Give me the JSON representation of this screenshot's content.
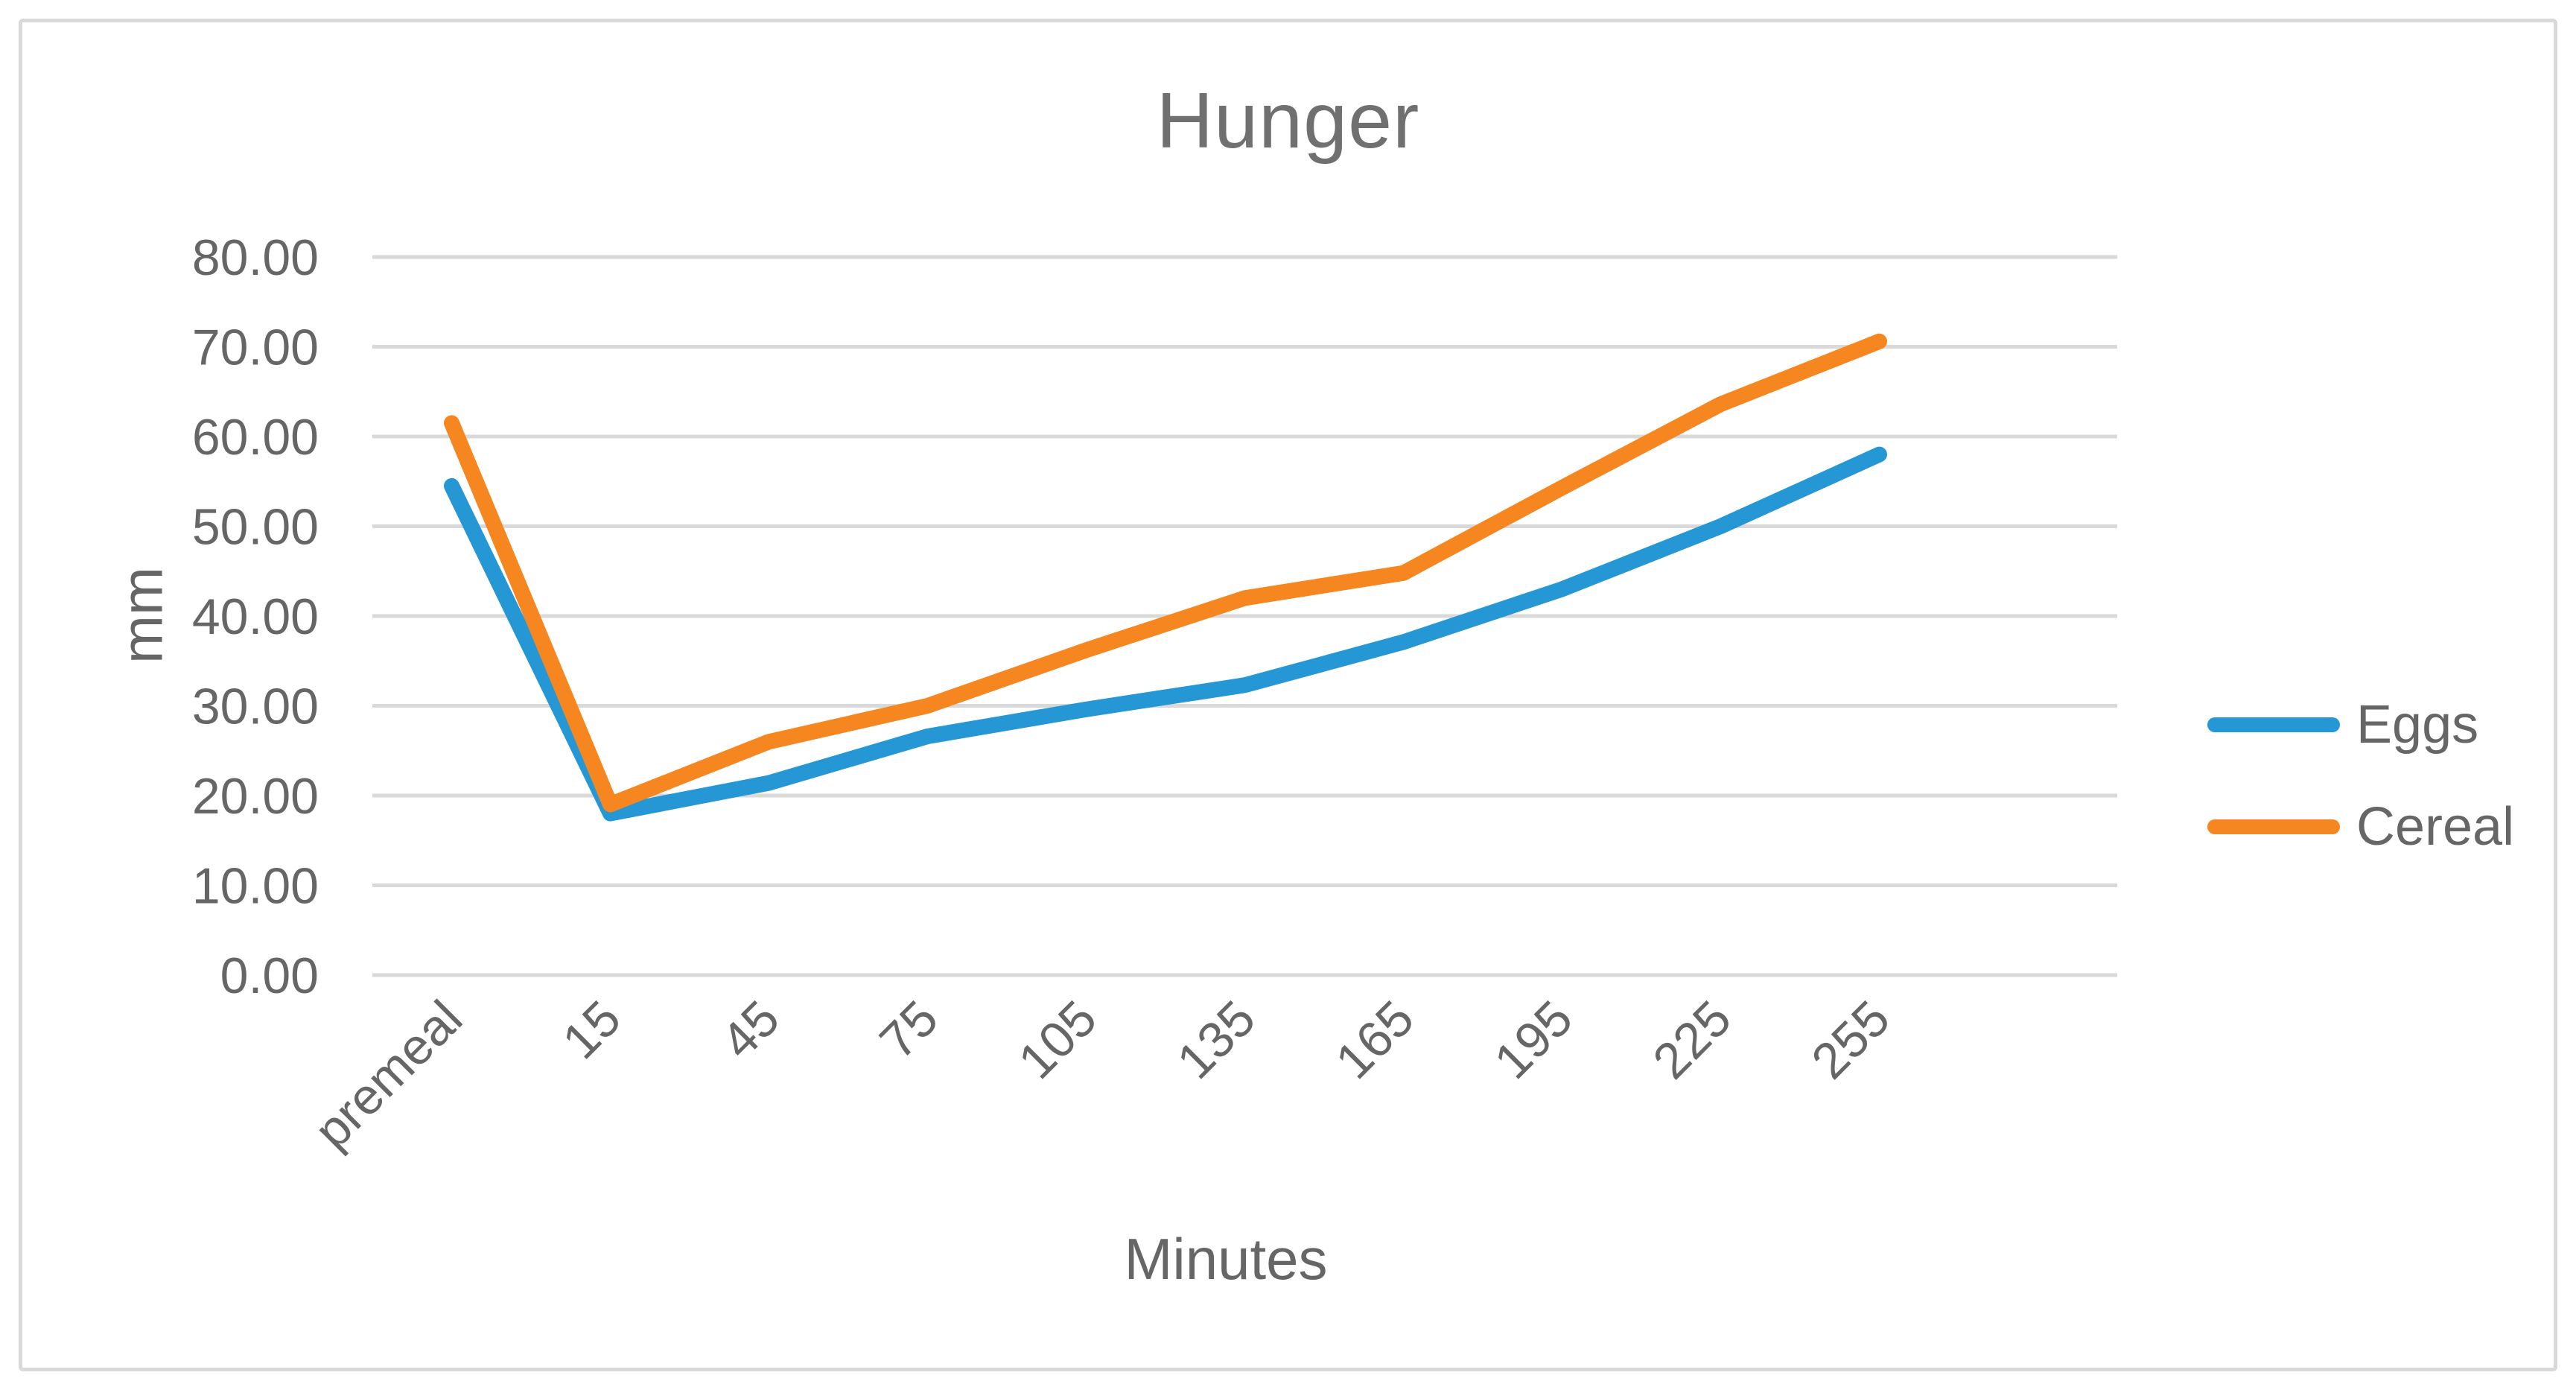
{
  "chart": {
    "title": "Hunger",
    "x_axis_title": "Minutes",
    "y_axis_title": "mm",
    "legend": {
      "position": "right",
      "items": [
        {
          "label": "Eggs",
          "color": "#2697D5"
        },
        {
          "label": "Cereal",
          "color": "#F6861F"
        }
      ]
    },
    "colors": {
      "gridline": "#D9D9D9",
      "border": "#D9D9D9",
      "title_text": "#707070",
      "axis_text": "#666666"
    }
  },
  "chart_data": {
    "type": "line",
    "title": "Hunger",
    "xlabel": "Minutes",
    "ylabel": "mm",
    "categories": [
      "premeal",
      "15",
      "45",
      "75",
      "105",
      "135",
      "165",
      "195",
      "225",
      "255"
    ],
    "series": [
      {
        "name": "Eggs",
        "color": "#2697D5",
        "values": [
          54.5,
          18.0,
          21.4,
          26.6,
          29.6,
          32.3,
          37.1,
          43.0,
          50.0,
          58.0
        ]
      },
      {
        "name": "Cereal",
        "color": "#F6861F",
        "values": [
          61.5,
          19.0,
          26.0,
          30.0,
          36.2,
          42.0,
          44.8,
          54.3,
          63.6,
          70.6
        ]
      }
    ],
    "ylim": [
      0,
      80
    ],
    "ytick_step": 10,
    "ytick_decimals": 2,
    "grid": "horizontal",
    "legend_position": "right",
    "x_label_rotation_deg": 45
  }
}
